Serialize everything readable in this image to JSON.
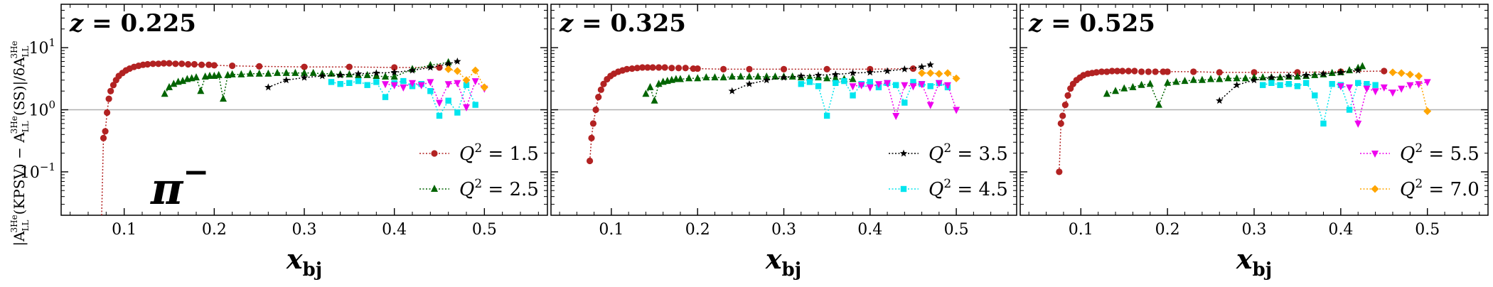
{
  "figure": {
    "ylabel": "|A_LL^3He(KPSV) − A_LL^3He(SS)|/δA_LL^3He",
    "ylabel_main": "|A",
    "ylabel_sub": "LL",
    "ylabel_sup": "3He",
    "ylabel_part2": "(KPSV) − A",
    "ylabel_part3": "(SS)|/δA",
    "xlabel": "x_bj",
    "xlabel_main": "x",
    "xlabel_sub": "bj",
    "hadron": "π⁻",
    "hadron_base": "π",
    "hadron_sup": "−",
    "q2_symbol": "Q",
    "q2_power": "2",
    "colors": {
      "q2_1.5": "#b22222",
      "q2_2.5": "#006400",
      "q2_3.5": "#000000",
      "q2_4.5": "#00e5ee",
      "q2_5.5": "#ee00ee",
      "q2_7.0": "#ffa500",
      "reference_line": "#b0b0b0"
    }
  },
  "chart_data": [
    {
      "type": "scatter",
      "title": "z = 0.225",
      "title_var": "z",
      "title_val": "0.225",
      "y_scale": "log",
      "xlim": [
        0.03,
        0.57
      ],
      "ylim": [
        0.02,
        50
      ],
      "xticks": [
        "0.1",
        "0.2",
        "0.3",
        "0.4",
        "0.5"
      ],
      "yticks": [
        "10^-1",
        "10^0",
        "10^1"
      ],
      "reference_y": 1.0,
      "legend_position": "lower-right",
      "legend": [
        "Q^2 = 1.5",
        "Q^2 = 2.5"
      ],
      "series": [
        {
          "name": "Q^2 = 1.5",
          "q2": "1.5",
          "marker": "circle",
          "color": "#b22222",
          "x": [
            0.075,
            0.077,
            0.079,
            0.081,
            0.083,
            0.085,
            0.088,
            0.091,
            0.094,
            0.098,
            0.102,
            0.106,
            0.111,
            0.116,
            0.121,
            0.126,
            0.132,
            0.138,
            0.144,
            0.15,
            0.157,
            0.164,
            0.171,
            0.178,
            0.186,
            0.194,
            0.2,
            0.22,
            0.25,
            0.3,
            0.35,
            0.4,
            0.45
          ],
          "y": [
            0.02,
            0.35,
            0.45,
            0.9,
            1.5,
            2.0,
            2.5,
            3.0,
            3.5,
            3.9,
            4.3,
            4.6,
            4.9,
            5.1,
            5.3,
            5.4,
            5.5,
            5.5,
            5.6,
            5.6,
            5.5,
            5.5,
            5.4,
            5.4,
            5.3,
            5.3,
            5.2,
            5.1,
            5.0,
            4.9,
            4.9,
            4.8,
            4.8
          ]
        },
        {
          "name": "Q^2 = 2.5",
          "q2": "2.5",
          "marker": "triangle",
          "color": "#006400",
          "x": [
            0.145,
            0.15,
            0.155,
            0.16,
            0.165,
            0.17,
            0.175,
            0.18,
            0.185,
            0.19,
            0.195,
            0.2,
            0.205,
            0.21,
            0.215,
            0.22,
            0.23,
            0.24,
            0.25,
            0.26,
            0.27,
            0.28,
            0.29,
            0.3,
            0.31,
            0.32,
            0.33,
            0.34,
            0.35,
            0.36,
            0.37,
            0.38,
            0.39,
            0.4,
            0.42,
            0.44,
            0.46
          ],
          "y": [
            1.8,
            2.3,
            2.6,
            2.8,
            2.9,
            3.1,
            3.2,
            3.3,
            2.0,
            3.4,
            3.5,
            3.5,
            3.6,
            1.5,
            3.6,
            3.7,
            3.7,
            3.8,
            3.8,
            3.8,
            3.9,
            3.9,
            3.9,
            3.9,
            3.9,
            3.8,
            3.8,
            3.7,
            3.7,
            3.6,
            3.6,
            3.5,
            3.4,
            3.4,
            4.5,
            5.2,
            5.8
          ]
        },
        {
          "name": "Q^2 = 3.5",
          "q2": "3.5",
          "marker": "star",
          "color": "#000000",
          "panel_only": true,
          "x": [
            0.26,
            0.28,
            0.3,
            0.32,
            0.34,
            0.36,
            0.38,
            0.4,
            0.42,
            0.44,
            0.46,
            0.47
          ],
          "y": [
            2.3,
            3.0,
            3.3,
            3.5,
            3.6,
            3.8,
            3.9,
            4.0,
            4.3,
            4.8,
            5.5,
            6.0
          ]
        },
        {
          "name": "Q^2 = 4.5",
          "q2": "4.5",
          "marker": "square",
          "color": "#00e5ee",
          "panel_only": true,
          "x": [
            0.33,
            0.34,
            0.35,
            0.36,
            0.37,
            0.38,
            0.39,
            0.4,
            0.41,
            0.42,
            0.43,
            0.44,
            0.45,
            0.46,
            0.47,
            0.48,
            0.49
          ],
          "y": [
            2.8,
            2.6,
            2.7,
            2.9,
            2.5,
            2.8,
            1.6,
            2.7,
            2.9,
            2.4,
            2.6,
            2.0,
            0.8,
            1.4,
            0.9,
            2.5,
            1.2
          ]
        },
        {
          "name": "Q^2 = 5.5",
          "q2": "5.5",
          "marker": "triangle-down",
          "color": "#ee00ee",
          "panel_only": true,
          "x": [
            0.39,
            0.4,
            0.41,
            0.42,
            0.43,
            0.44,
            0.45,
            0.46,
            0.47,
            0.48,
            0.49,
            0.5
          ],
          "y": [
            2.6,
            2.5,
            2.3,
            2.7,
            2.5,
            2.8,
            1.3,
            2.6,
            2.7,
            1.1,
            2.9,
            2.2
          ]
        },
        {
          "name": "Q^2 = 7.0",
          "q2": "7.0",
          "marker": "diamond",
          "color": "#ffa500",
          "panel_only": true,
          "x": [
            0.46,
            0.47,
            0.48,
            0.49,
            0.5
          ],
          "y": [
            4.5,
            4.2,
            3.0,
            4.3,
            2.3
          ]
        }
      ]
    },
    {
      "type": "scatter",
      "title": "z = 0.325",
      "title_var": "z",
      "title_val": "0.325",
      "y_scale": "log",
      "xlim": [
        0.03,
        0.57
      ],
      "ylim": [
        0.02,
        50
      ],
      "xticks": [
        "0.1",
        "0.2",
        "0.3",
        "0.4",
        "0.5"
      ],
      "yticks": [
        "10^-1",
        "10^0",
        "10^1"
      ],
      "reference_y": 1.0,
      "legend_position": "lower-right",
      "legend": [
        "Q^2 = 3.5",
        "Q^2 = 4.5"
      ],
      "series": [
        {
          "name": "Q^2 = 1.5",
          "q2": "1.5",
          "marker": "circle",
          "color": "#b22222",
          "panel_only": true,
          "x": [
            0.075,
            0.077,
            0.079,
            0.082,
            0.085,
            0.088,
            0.091,
            0.095,
            0.099,
            0.103,
            0.108,
            0.113,
            0.118,
            0.124,
            0.13,
            0.136,
            0.142,
            0.148,
            0.155,
            0.162,
            0.17,
            0.178,
            0.186,
            0.195,
            0.2,
            0.23,
            0.26,
            0.3,
            0.35,
            0.4,
            0.45
          ],
          "y": [
            0.15,
            0.35,
            0.6,
            1.0,
            1.6,
            2.1,
            2.6,
            3.1,
            3.5,
            3.8,
            4.1,
            4.3,
            4.5,
            4.6,
            4.7,
            4.8,
            4.8,
            4.8,
            4.8,
            4.8,
            4.7,
            4.7,
            4.7,
            4.6,
            4.6,
            4.5,
            4.5,
            4.5,
            4.5,
            4.5,
            4.6
          ]
        },
        {
          "name": "Q^2 = 2.5",
          "q2": "2.5",
          "marker": "triangle",
          "color": "#006400",
          "panel_only": true,
          "x": [
            0.14,
            0.145,
            0.15,
            0.155,
            0.16,
            0.165,
            0.17,
            0.175,
            0.18,
            0.19,
            0.2,
            0.21,
            0.22,
            0.23,
            0.24,
            0.25,
            0.26,
            0.27,
            0.28,
            0.29,
            0.3,
            0.31,
            0.32,
            0.33,
            0.34,
            0.35,
            0.36,
            0.37,
            0.38
          ],
          "y": [
            1.8,
            2.3,
            1.4,
            2.6,
            2.8,
            2.9,
            3.0,
            3.1,
            3.1,
            3.2,
            3.2,
            3.3,
            3.3,
            3.3,
            3.4,
            3.4,
            3.4,
            3.4,
            3.4,
            3.4,
            3.4,
            3.4,
            3.3,
            3.3,
            3.3,
            3.2,
            3.2,
            3.1,
            3.1
          ]
        },
        {
          "name": "Q^2 = 3.5",
          "q2": "3.5",
          "marker": "star",
          "color": "#000000",
          "x": [
            0.24,
            0.26,
            0.28,
            0.3,
            0.32,
            0.34,
            0.36,
            0.38,
            0.4,
            0.42,
            0.44,
            0.46,
            0.47
          ],
          "y": [
            2.0,
            2.6,
            3.0,
            3.3,
            3.5,
            3.6,
            3.7,
            3.9,
            4.0,
            4.2,
            4.5,
            4.9,
            5.3
          ]
        },
        {
          "name": "Q^2 = 4.5",
          "q2": "4.5",
          "marker": "square",
          "color": "#00e5ee",
          "x": [
            0.32,
            0.33,
            0.34,
            0.35,
            0.36,
            0.37,
            0.38,
            0.39,
            0.4,
            0.41,
            0.42,
            0.43,
            0.44,
            0.45,
            0.46,
            0.47,
            0.48,
            0.49
          ],
          "y": [
            2.6,
            2.8,
            2.4,
            0.8,
            2.7,
            2.9,
            1.7,
            2.6,
            2.8,
            2.3,
            2.7,
            2.5,
            1.3,
            2.8,
            2.6,
            2.4,
            2.7,
            2.3
          ]
        },
        {
          "name": "Q^2 = 5.5",
          "q2": "5.5",
          "marker": "triangle-down",
          "color": "#ee00ee",
          "panel_only": true,
          "x": [
            0.38,
            0.39,
            0.4,
            0.41,
            0.42,
            0.43,
            0.44,
            0.45,
            0.46,
            0.47,
            0.48,
            0.49,
            0.5
          ],
          "y": [
            2.4,
            2.5,
            2.3,
            2.6,
            2.7,
            0.8,
            2.5,
            2.4,
            2.6,
            1.2,
            2.7,
            2.5,
            1.0
          ]
        },
        {
          "name": "Q^2 = 7.0",
          "q2": "7.0",
          "marker": "diamond",
          "color": "#ffa500",
          "panel_only": true,
          "x": [
            0.46,
            0.47,
            0.48,
            0.49,
            0.5
          ],
          "y": [
            3.9,
            3.9,
            3.8,
            3.9,
            3.2
          ]
        }
      ]
    },
    {
      "type": "scatter",
      "title": "z = 0.525",
      "title_var": "z",
      "title_val": "0.525",
      "y_scale": "log",
      "xlim": [
        0.03,
        0.57
      ],
      "ylim": [
        0.02,
        50
      ],
      "xticks": [
        "0.1",
        "0.2",
        "0.3",
        "0.4",
        "0.5"
      ],
      "yticks": [
        "10^-1",
        "10^0",
        "10^1"
      ],
      "reference_y": 1.0,
      "legend_position": "lower-right",
      "legend": [
        "Q^2 = 5.5",
        "Q^2 = 7.0"
      ],
      "series": [
        {
          "name": "Q^2 = 1.5",
          "q2": "1.5",
          "marker": "circle",
          "color": "#b22222",
          "panel_only": true,
          "x": [
            0.075,
            0.077,
            0.079,
            0.082,
            0.085,
            0.088,
            0.091,
            0.095,
            0.099,
            0.103,
            0.108,
            0.113,
            0.118,
            0.124,
            0.13,
            0.136,
            0.142,
            0.148,
            0.155,
            0.162,
            0.17,
            0.178,
            0.186,
            0.195,
            0.2,
            0.23,
            0.26,
            0.3,
            0.35,
            0.4,
            0.45
          ],
          "y": [
            0.1,
            0.6,
            0.8,
            1.2,
            1.7,
            2.2,
            2.6,
            3.0,
            3.3,
            3.6,
            3.8,
            3.9,
            4.0,
            4.1,
            4.1,
            4.2,
            4.2,
            4.2,
            4.2,
            4.2,
            4.1,
            4.1,
            4.1,
            4.1,
            4.1,
            4.1,
            4.0,
            4.0,
            4.0,
            4.1,
            4.2
          ]
        },
        {
          "name": "Q^2 = 2.5",
          "q2": "2.5",
          "marker": "triangle",
          "color": "#006400",
          "panel_only": true,
          "x": [
            0.13,
            0.14,
            0.15,
            0.16,
            0.17,
            0.18,
            0.19,
            0.2,
            0.21,
            0.22,
            0.23,
            0.24,
            0.25,
            0.26,
            0.27,
            0.28,
            0.29,
            0.3,
            0.31,
            0.32,
            0.33,
            0.34,
            0.35,
            0.36,
            0.37,
            0.38,
            0.39,
            0.4,
            0.41,
            0.42,
            0.425
          ],
          "y": [
            1.8,
            2.0,
            2.2,
            2.3,
            2.5,
            2.6,
            1.2,
            2.7,
            2.8,
            2.9,
            3.0,
            3.0,
            3.1,
            3.1,
            3.2,
            3.2,
            3.2,
            3.3,
            3.3,
            3.3,
            3.3,
            3.4,
            3.4,
            3.5,
            3.6,
            3.7,
            3.9,
            4.0,
            4.3,
            4.7,
            5.0
          ]
        },
        {
          "name": "Q^2 = 3.5",
          "q2": "3.5",
          "marker": "star",
          "color": "#000000",
          "panel_only": true,
          "x": [
            0.26,
            0.28,
            0.3,
            0.32,
            0.34,
            0.36,
            0.38,
            0.4,
            0.42
          ],
          "y": [
            1.4,
            2.5,
            3.0,
            3.3,
            3.5,
            3.6,
            3.8,
            4.0,
            4.3
          ]
        },
        {
          "name": "Q^2 = 4.5",
          "q2": "4.5",
          "marker": "square",
          "color": "#00e5ee",
          "panel_only": true,
          "x": [
            0.31,
            0.32,
            0.33,
            0.34,
            0.35,
            0.36,
            0.37,
            0.38,
            0.39,
            0.4,
            0.41,
            0.42,
            0.43,
            0.44
          ],
          "y": [
            2.5,
            2.7,
            2.5,
            2.6,
            2.4,
            2.7,
            1.7,
            0.6,
            2.6,
            2.5,
            1.0,
            2.7,
            2.6,
            2.5
          ]
        },
        {
          "name": "Q^2 = 5.5",
          "q2": "5.5",
          "marker": "triangle-down",
          "color": "#ee00ee",
          "x": [
            0.4,
            0.41,
            0.42,
            0.43,
            0.44,
            0.45,
            0.46,
            0.47,
            0.48,
            0.49,
            0.5
          ],
          "y": [
            2.4,
            2.3,
            0.6,
            2.2,
            2.0,
            2.3,
            1.9,
            2.2,
            2.5,
            2.6,
            2.8
          ]
        },
        {
          "name": "Q^2 = 7.0",
          "q2": "7.0",
          "marker": "diamond",
          "color": "#ffa500",
          "x": [
            0.46,
            0.47,
            0.48,
            0.49,
            0.5
          ],
          "y": [
            4.0,
            3.9,
            3.7,
            3.5,
            0.95
          ]
        }
      ]
    }
  ]
}
